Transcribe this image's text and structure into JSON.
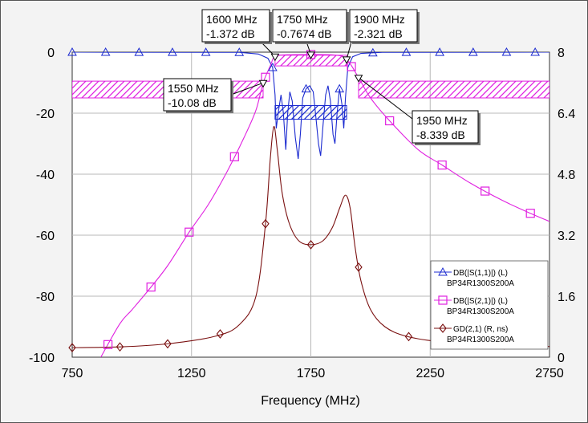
{
  "chart_data": {
    "type": "line",
    "title": "",
    "xlabel": "Frequency (MHz)",
    "xlim": [
      750,
      2750
    ],
    "xticks": [
      750,
      1250,
      1750,
      2250,
      2750
    ],
    "ylim_left": [
      -100,
      0
    ],
    "yticks_left": [
      0,
      -20,
      -40,
      -60,
      -80,
      -100
    ],
    "ylim_right": [
      0,
      8
    ],
    "yticks_right": [
      8,
      6.4,
      4.8,
      3.2,
      1.6,
      0
    ],
    "grid": true,
    "legend_position": "bottom-right",
    "series": [
      {
        "name": "DB(|S(1,1)|) (L)",
        "sub": "BP34R1300S200A",
        "axis": "left",
        "color": "#1c2bd0",
        "marker": "triangle",
        "points": [
          [
            750,
            0
          ],
          [
            1450,
            -0.05
          ],
          [
            1530,
            -0.6
          ],
          [
            1570,
            -2
          ],
          [
            1590,
            -5
          ],
          [
            1600,
            -14
          ],
          [
            1605,
            -25
          ],
          [
            1615,
            -19
          ],
          [
            1625,
            -14
          ],
          [
            1635,
            -20
          ],
          [
            1645,
            -32
          ],
          [
            1653,
            -20
          ],
          [
            1662,
            -13
          ],
          [
            1672,
            -16
          ],
          [
            1685,
            -28
          ],
          [
            1697,
            -35
          ],
          [
            1706,
            -27
          ],
          [
            1716,
            -15
          ],
          [
            1730,
            -12
          ],
          [
            1745,
            -11
          ],
          [
            1760,
            -13
          ],
          [
            1772,
            -22
          ],
          [
            1782,
            -30
          ],
          [
            1791,
            -34
          ],
          [
            1801,
            -24
          ],
          [
            1812,
            -14
          ],
          [
            1822,
            -11
          ],
          [
            1832,
            -16
          ],
          [
            1843,
            -27
          ],
          [
            1851,
            -30
          ],
          [
            1860,
            -20
          ],
          [
            1870,
            -12
          ],
          [
            1880,
            -17
          ],
          [
            1888,
            -25
          ],
          [
            1895,
            -15
          ],
          [
            1905,
            -5
          ],
          [
            1925,
            -1.5
          ],
          [
            1960,
            -0.4
          ],
          [
            2050,
            -0.05
          ],
          [
            2750,
            0
          ]
        ],
        "markers_x": [
          750,
          890,
          1030,
          1170,
          1310,
          1450,
          1590,
          1730,
          1870,
          2010,
          2150,
          2290,
          2430,
          2570,
          2690
        ]
      },
      {
        "name": "DB(|S(2,1)|) (L)",
        "sub": "BP34R1300S200A",
        "axis": "left",
        "color": "#e020e0",
        "marker": "square",
        "points": [
          [
            870,
            -100
          ],
          [
            950,
            -89
          ],
          [
            1000,
            -84.5
          ],
          [
            1070,
            -78
          ],
          [
            1150,
            -70
          ],
          [
            1240,
            -59
          ],
          [
            1320,
            -50
          ],
          [
            1400,
            -39
          ],
          [
            1470,
            -28
          ],
          [
            1520,
            -19
          ],
          [
            1550,
            -10.08
          ],
          [
            1580,
            -4.5
          ],
          [
            1600,
            -1.372
          ],
          [
            1650,
            -0.85
          ],
          [
            1750,
            -0.7674
          ],
          [
            1850,
            -0.95
          ],
          [
            1900,
            -2.321
          ],
          [
            1950,
            -8.339
          ],
          [
            2000,
            -15
          ],
          [
            2080,
            -22.5
          ],
          [
            2200,
            -32
          ],
          [
            2300,
            -37
          ],
          [
            2420,
            -43
          ],
          [
            2550,
            -48.5
          ],
          [
            2660,
            -52.5
          ],
          [
            2750,
            -55.5
          ]
        ],
        "markers_x": [
          900,
          1080,
          1240,
          1430,
          1560,
          1750,
          1920,
          2080,
          2300,
          2480,
          2670
        ]
      },
      {
        "name": "GD(2,1) (R, ns)",
        "sub": "BP34R1300S200A",
        "axis": "right",
        "color": "#7a1010",
        "marker": "diamond",
        "points": [
          [
            750,
            0.25
          ],
          [
            950,
            0.27
          ],
          [
            1150,
            0.35
          ],
          [
            1350,
            0.55
          ],
          [
            1450,
            0.85
          ],
          [
            1520,
            1.6
          ],
          [
            1560,
            3.5
          ],
          [
            1580,
            5.2
          ],
          [
            1595,
            6.05
          ],
          [
            1610,
            5.4
          ],
          [
            1630,
            4.3
          ],
          [
            1660,
            3.5
          ],
          [
            1700,
            3.05
          ],
          [
            1750,
            2.95
          ],
          [
            1800,
            3.05
          ],
          [
            1840,
            3.4
          ],
          [
            1870,
            3.9
          ],
          [
            1895,
            4.25
          ],
          [
            1915,
            3.9
          ],
          [
            1935,
            2.9
          ],
          [
            1960,
            2
          ],
          [
            2000,
            1.25
          ],
          [
            2060,
            0.8
          ],
          [
            2150,
            0.55
          ],
          [
            2300,
            0.4
          ],
          [
            2500,
            0.33
          ],
          [
            2750,
            0.28
          ]
        ],
        "markers_x": [
          750,
          950,
          1150,
          1370,
          1560,
          1750,
          1950,
          2160,
          2360,
          2560
        ]
      }
    ],
    "spec_boxes": [
      {
        "x": [
          750,
          1550
        ],
        "y": [
          -15,
          -9.5
        ],
        "color": "#e020e0"
      },
      {
        "x": [
          1950,
          2750
        ],
        "y": [
          -15,
          -9.5
        ],
        "color": "#e020e0"
      },
      {
        "x": [
          1600,
          1900
        ],
        "y": [
          -4.5,
          -1
        ],
        "color": "#e020e0"
      },
      {
        "x": [
          1600,
          1900
        ],
        "y": [
          -22,
          -17.5
        ],
        "color": "#1c2bd0"
      }
    ],
    "annotations": [
      {
        "freq": "1600 MHz",
        "value": "-1.372 dB",
        "x": 1600,
        "y": -1.372
      },
      {
        "freq": "1750 MHz",
        "value": "-0.7674 dB",
        "x": 1750,
        "y": -0.7674
      },
      {
        "freq": "1900 MHz",
        "value": "-2.321 dB",
        "x": 1900,
        "y": -2.321
      },
      {
        "freq": "1550 MHz",
        "value": "-10.08 dB",
        "x": 1550,
        "y": -10.08
      },
      {
        "freq": "1950 MHz",
        "value": "-8.339 dB",
        "x": 1950,
        "y": -8.339
      }
    ]
  }
}
